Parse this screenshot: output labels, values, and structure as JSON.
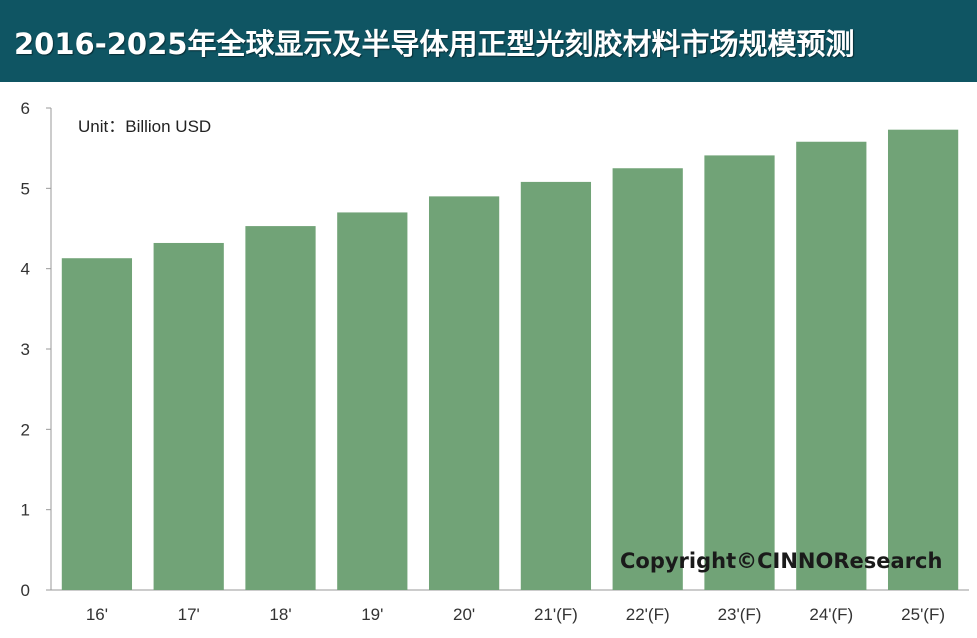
{
  "title": "2016-2025年全球显示及半导体用正型光刻胶材料市场规模预测",
  "unit_label": "Unit：Billion USD",
  "copyright": "Copyright©CINNOResearch",
  "colors": {
    "title_bar": "#0f5563",
    "bar": "#71a377",
    "axis": "#999999"
  },
  "chart_data": {
    "type": "bar",
    "categories": [
      "16'",
      "17'",
      "18'",
      "19'",
      "20'",
      "21'(F)",
      "22'(F)",
      "23'(F)",
      "24'(F)",
      "25'(F)"
    ],
    "values": [
      4.13,
      4.32,
      4.53,
      4.7,
      4.9,
      5.08,
      5.25,
      5.41,
      5.58,
      5.73
    ],
    "ylim": [
      0,
      6
    ],
    "yticks": [
      "0",
      "1",
      "2",
      "3",
      "4",
      "5",
      "6"
    ],
    "grid": false,
    "legend": "none"
  }
}
